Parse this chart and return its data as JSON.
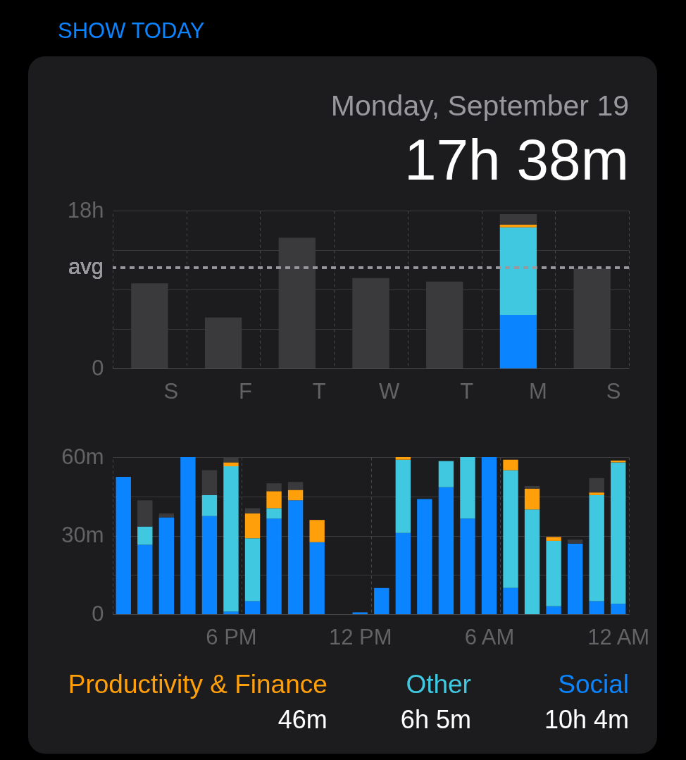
{
  "chart_data": [
    {
      "type": "bar",
      "title": "Monday, September 19",
      "subtitle": "17h 38m",
      "annotations": [
        "SHOW TODAY"
      ],
      "categories": [
        "S",
        "F",
        "T",
        "W",
        "T",
        "M",
        "S"
      ],
      "stacked": true,
      "series": [
        {
          "color": "#0a84ff",
          "values": [
            null,
            null,
            null,
            null,
            null,
            6.1,
            null
          ]
        },
        {
          "color": "#40c8e0",
          "values": [
            null,
            null,
            null,
            null,
            null,
            10,
            null
          ]
        },
        {
          "color": "#ff9f0a",
          "values": [
            null,
            null,
            null,
            null,
            null,
            0.3,
            null
          ]
        },
        {
          "color": "#3a3a3c",
          "values": [
            9.7,
            5.8,
            14.9,
            10.3,
            9.9,
            1.2,
            11.4
          ]
        }
      ],
      "ylim": [
        0,
        18
      ],
      "yticks": [
        0,
        {
          "value": 4.5,
          "label": null
        },
        {
          "value": 9,
          "label": null
        },
        {
          "value": 13.5,
          "label": null
        },
        {
          "value": 18,
          "label": "18h"
        }
      ],
      "ref_lines": [
        {
          "axis": "y",
          "value": 11.5,
          "label": "avg",
          "line_style": "dashed",
          "color": "#98989d"
        }
      ],
      "grid": true
    },
    {
      "type": "bar",
      "categories": [
        null,
        null,
        null,
        null,
        null,
        "6 PM",
        null,
        null,
        null,
        null,
        null,
        "12 PM",
        null,
        null,
        null,
        null,
        null,
        "6 AM",
        null,
        null,
        null,
        null,
        null,
        "12 AM"
      ],
      "stacked": true,
      "series": [
        {
          "name": "Social",
          "color": "#0a84ff",
          "values": [
            52.5,
            26.5,
            37,
            60,
            37.5,
            1,
            5,
            36.5,
            43.5,
            27.5,
            null,
            0.7,
            10,
            31,
            44,
            48.5,
            36.5,
            60,
            10,
            null,
            3,
            27,
            5,
            4
          ]
        },
        {
          "name": "Other",
          "color": "#40c8e0",
          "values": [
            null,
            7,
            null,
            null,
            8,
            55.5,
            24,
            4,
            null,
            null,
            null,
            null,
            null,
            28,
            null,
            10,
            23.5,
            null,
            45,
            40,
            25,
            null,
            40.5,
            54
          ]
        },
        {
          "name": "Productivity & Finance",
          "color": "#ff9f0a",
          "values": [
            null,
            null,
            null,
            null,
            null,
            1.5,
            9.5,
            6.5,
            4,
            8.5,
            null,
            null,
            null,
            1,
            null,
            null,
            null,
            null,
            4,
            8,
            1.5,
            null,
            1,
            0.7
          ]
        },
        {
          "color": "#3a3a3c",
          "values": [
            null,
            10,
            1.5,
            null,
            9.5,
            2,
            2,
            3,
            3,
            null,
            null,
            null,
            null,
            null,
            null,
            null,
            null,
            null,
            null,
            1,
            null,
            1.5,
            5.5,
            null
          ]
        }
      ],
      "ylim": [
        0,
        60
      ],
      "yticks": [
        0,
        {
          "value": 15,
          "label": null
        },
        {
          "value": 30,
          "label": "30m"
        },
        {
          "value": 45,
          "label": null
        },
        {
          "value": 60,
          "label": "60m"
        }
      ],
      "grid": true,
      "legend": "bottom",
      "annotations": [
        "10h 4m",
        "6h 5m",
        "46m"
      ]
    }
  ]
}
